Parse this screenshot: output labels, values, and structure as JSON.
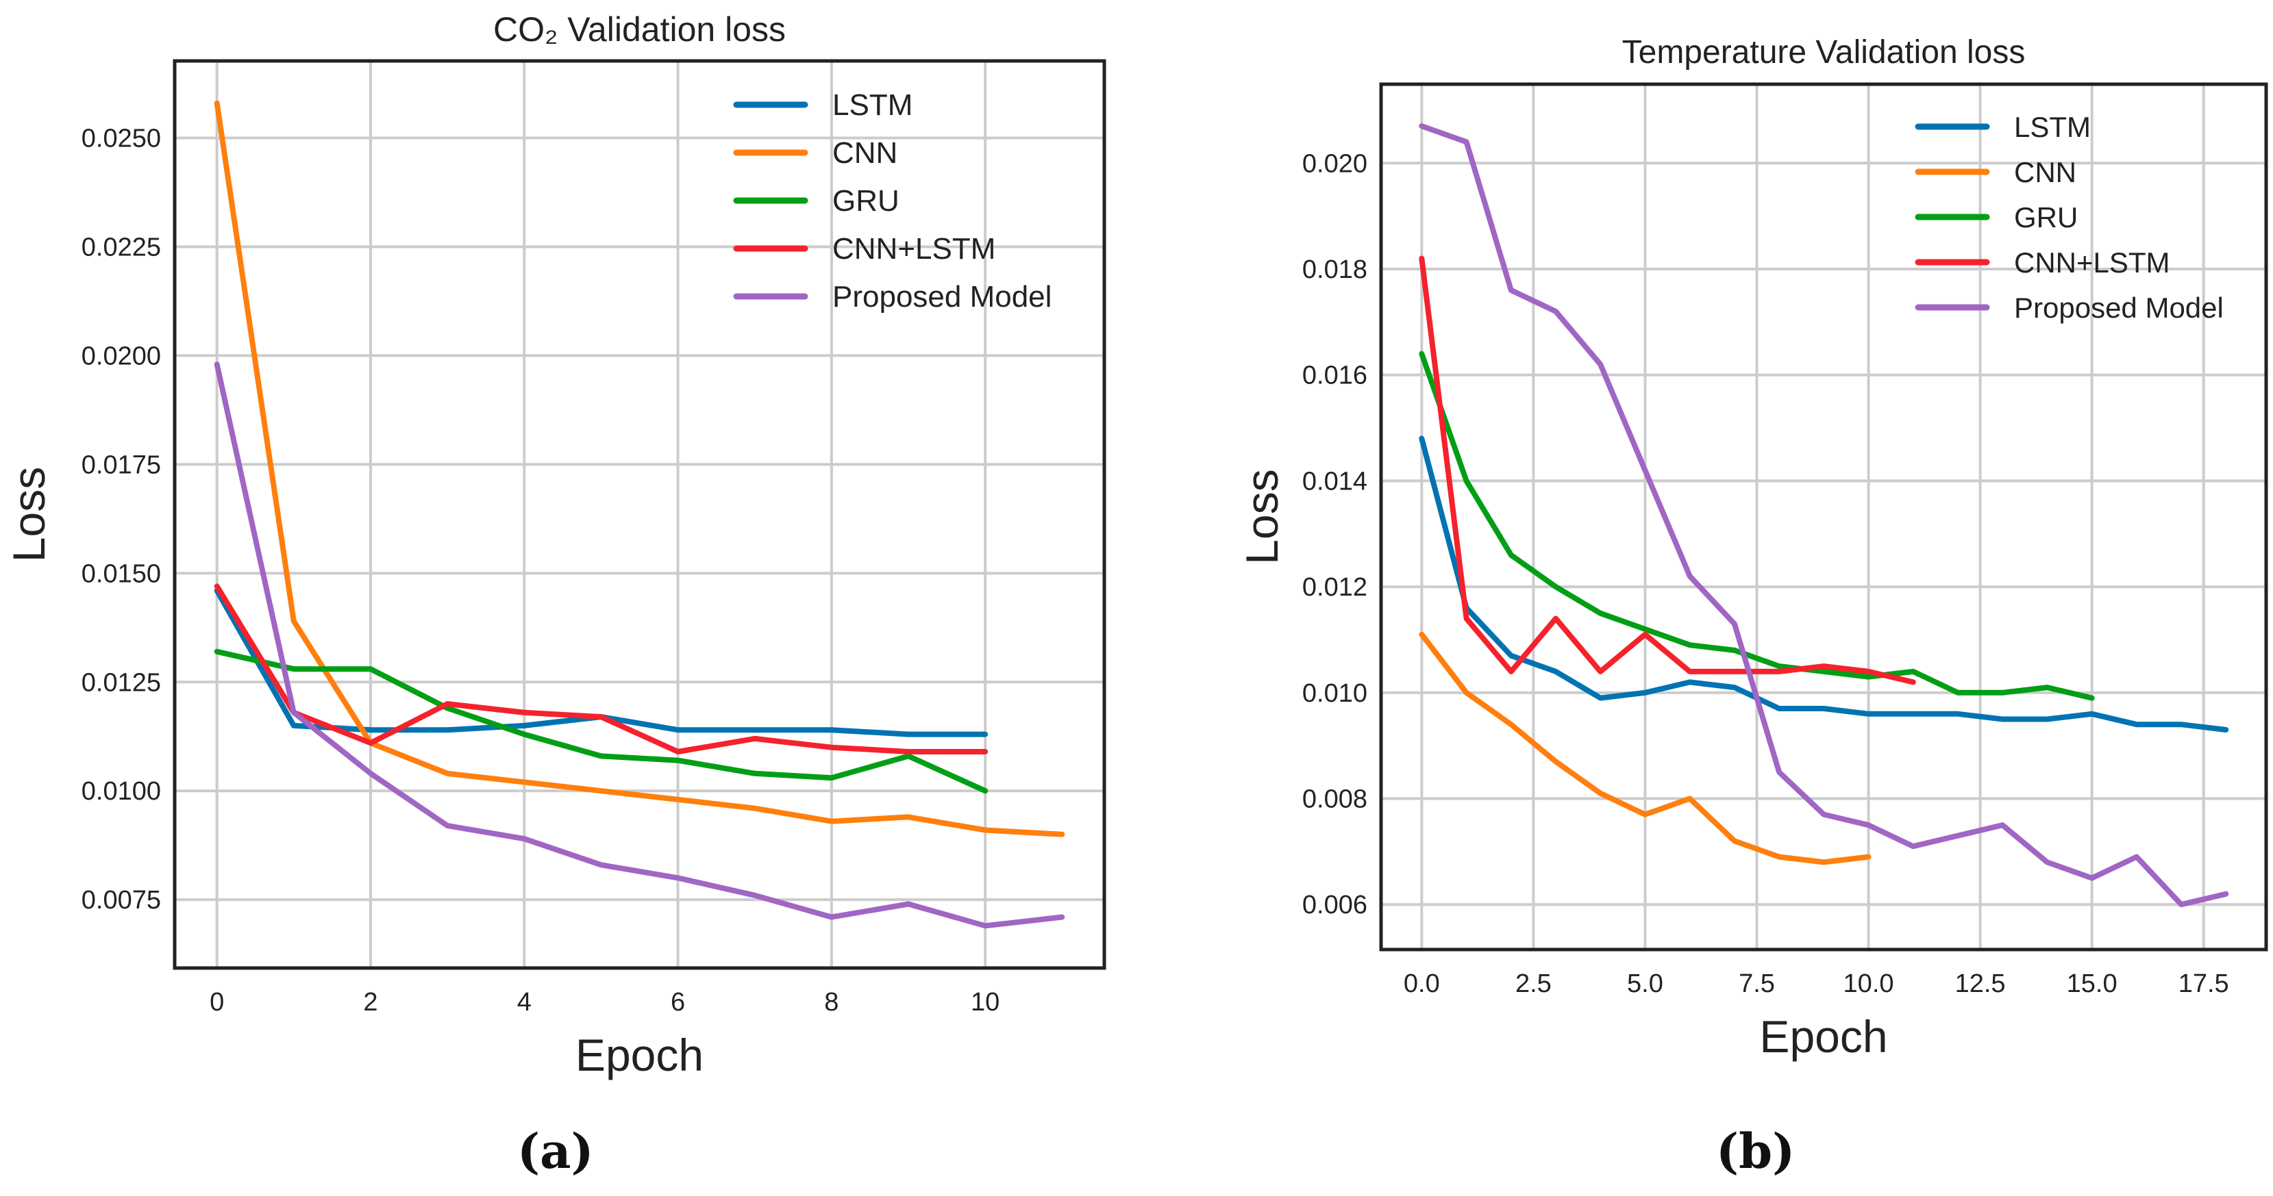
{
  "figure": {
    "subfig_a": "(a)",
    "subfig_b": "(b)"
  },
  "colors": {
    "LSTM": "#0173b2",
    "CNN": "#ff7f0e",
    "GRU": "#029e15",
    "CNN+LSTM": "#f5222d",
    "Proposed Model": "#a066c4",
    "grid": "#cccccc",
    "frame": "#222222"
  },
  "chart_data": [
    {
      "type": "line",
      "title": "CO₂  Validation loss",
      "xlabel": "Epoch",
      "ylabel": "Loss",
      "xlim": [
        -0.55,
        11.55
      ],
      "ylim": [
        0.00593,
        0.02677
      ],
      "xticks": [
        0,
        2,
        4,
        6,
        8,
        10
      ],
      "xtick_labels": [
        "0",
        "2",
        "4",
        "6",
        "8",
        "10"
      ],
      "yticks": [
        0.0075,
        0.01,
        0.0125,
        0.015,
        0.0175,
        0.02,
        0.0225,
        0.025
      ],
      "ytick_labels": [
        "0.0075",
        "0.0100",
        "0.0125",
        "0.0150",
        "0.0175",
        "0.0200",
        "0.0225",
        "0.0250"
      ],
      "grid": true,
      "legend_position": "top-right",
      "series": [
        {
          "name": "LSTM",
          "values": [
            0.0146,
            0.0115,
            0.0114,
            0.0114,
            0.0115,
            0.0117,
            0.0114,
            0.0114,
            0.0114,
            0.0113,
            0.0113
          ]
        },
        {
          "name": "CNN",
          "values": [
            0.0258,
            0.0139,
            0.0111,
            0.0104,
            0.0102,
            0.01,
            0.0098,
            0.0096,
            0.0093,
            0.0094,
            0.0091,
            0.009
          ]
        },
        {
          "name": "GRU",
          "values": [
            0.0132,
            0.0128,
            0.0128,
            0.0119,
            0.0113,
            0.0108,
            0.0107,
            0.0104,
            0.0103,
            0.0108,
            0.01
          ]
        },
        {
          "name": "CNN+LSTM",
          "values": [
            0.0147,
            0.0118,
            0.0111,
            0.012,
            0.0118,
            0.0117,
            0.0109,
            0.0112,
            0.011,
            0.0109,
            0.0109
          ]
        },
        {
          "name": "Proposed Model",
          "values": [
            0.0198,
            0.0118,
            0.0104,
            0.0092,
            0.0089,
            0.0083,
            0.008,
            0.0076,
            0.0071,
            0.0074,
            0.0069,
            0.0071
          ]
        }
      ]
    },
    {
      "type": "line",
      "title": "Temperature Validation loss",
      "xlabel": "Epoch",
      "ylabel": "Loss",
      "xlim": [
        -0.91,
        18.9
      ],
      "ylim": [
        0.00515,
        0.02149
      ],
      "xticks": [
        0,
        2.5,
        5,
        7.5,
        10,
        12.5,
        15,
        17.5
      ],
      "xtick_labels": [
        "0.0",
        "2.5",
        "5.0",
        "7.5",
        "10.0",
        "12.5",
        "15.0",
        "17.5"
      ],
      "yticks": [
        0.006,
        0.008,
        0.01,
        0.012,
        0.014,
        0.016,
        0.018,
        0.02
      ],
      "ytick_labels": [
        "0.006",
        "0.008",
        "0.010",
        "0.012",
        "0.014",
        "0.016",
        "0.018",
        "0.020"
      ],
      "grid": true,
      "legend_position": "top-right",
      "series": [
        {
          "name": "LSTM",
          "values": [
            0.0148,
            0.0116,
            0.0107,
            0.0104,
            0.0099,
            0.01,
            0.0102,
            0.0101,
            0.0097,
            0.0097,
            0.0096,
            0.0096,
            0.0096,
            0.0095,
            0.0095,
            0.0096,
            0.0094,
            0.0094,
            0.0093
          ]
        },
        {
          "name": "CNN",
          "values": [
            0.0111,
            0.01,
            0.0094,
            0.0087,
            0.0081,
            0.0077,
            0.008,
            0.0072,
            0.0069,
            0.0068,
            0.0069
          ]
        },
        {
          "name": "GRU",
          "values": [
            0.0164,
            0.014,
            0.0126,
            0.012,
            0.0115,
            0.0112,
            0.0109,
            0.0108,
            0.0105,
            0.0104,
            0.0103,
            0.0104,
            0.01,
            0.01,
            0.0101,
            0.0099
          ]
        },
        {
          "name": "CNN+LSTM",
          "values": [
            0.0182,
            0.0114,
            0.0104,
            0.0114,
            0.0104,
            0.0111,
            0.0104,
            0.0104,
            0.0104,
            0.0105,
            0.0104,
            0.0102
          ]
        },
        {
          "name": "Proposed Model",
          "values": [
            0.0207,
            0.0204,
            0.0176,
            0.0172,
            0.0162,
            0.0142,
            0.0122,
            0.0113,
            0.0085,
            0.0077,
            0.0075,
            0.0071,
            0.0073,
            0.0075,
            0.0068,
            0.0065,
            0.0069,
            0.006,
            0.0062
          ]
        }
      ]
    }
  ]
}
